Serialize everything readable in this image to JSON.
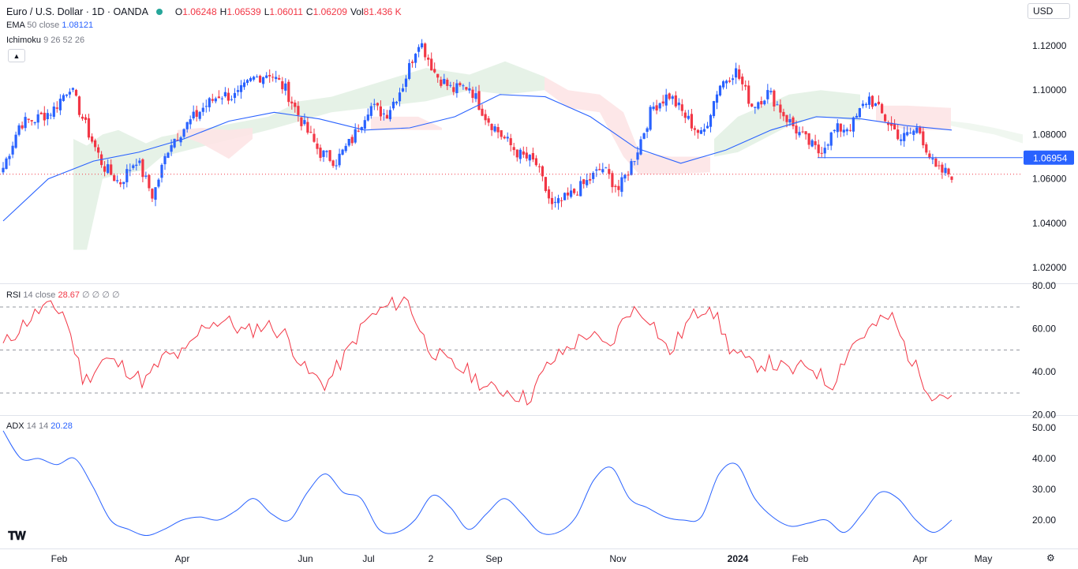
{
  "header": {
    "symbol": "Euro / U.S. Dollar · 1D · OANDA",
    "open_label": "O",
    "open": "1.06248",
    "high_label": "H",
    "high": "1.06539",
    "low_label": "L",
    "low": "1.06011",
    "close_label": "C",
    "close": "1.06209",
    "vol_label": "Vol",
    "vol": "81.436 K"
  },
  "currency": "USD",
  "indicators": {
    "ema": {
      "name": "EMA",
      "params": "50 close",
      "value": "1.08121"
    },
    "ichimoku": {
      "name": "Ichimoku",
      "params": "9 26 52 26"
    },
    "rsi": {
      "name": "RSI",
      "params": "14 close",
      "value": "28.67",
      "extra": "∅ ∅ ∅ ∅"
    },
    "adx": {
      "name": "ADX",
      "params": "14 14",
      "value": "20.28"
    }
  },
  "colors": {
    "up": "#2962ff",
    "down": "#f23645",
    "ema": "#2962ff",
    "rsi": "#f23645",
    "adx": "#2962ff",
    "cloud_up": "#e3f1e4",
    "cloud_down": "#fde4e6"
  },
  "chart_data": [
    {
      "type": "candlestick",
      "title": "Euro / U.S. Dollar · 1D · OANDA",
      "ylim": [
        1.01,
        1.129
      ],
      "y_ticks": [
        "1.12000",
        "1.10000",
        "1.08000",
        "1.06000",
        "1.04000",
        "1.02000"
      ],
      "x_ticks": [
        "Feb",
        "Apr",
        "Jun",
        "Jul",
        "2",
        "Sep",
        "Nov",
        "2024",
        "Feb",
        "Apr",
        "May"
      ],
      "current_price": "1.06209",
      "level_line": {
        "label": "1.06954",
        "value": 1.06954
      },
      "close_path": [
        [
          "Jan 2023",
          1.065
        ],
        [
          "Jan 2023",
          1.085
        ],
        [
          "Jan 2023",
          1.087
        ],
        [
          "Jan 2023",
          1.091
        ],
        [
          "Feb",
          1.102
        ],
        [
          "Feb",
          1.083
        ],
        [
          "Feb",
          1.066
        ],
        [
          "Feb",
          1.058
        ],
        [
          "Mar",
          1.069
        ],
        [
          "Mar",
          1.052
        ],
        [
          "Mar",
          1.076
        ],
        [
          "Mar",
          1.084
        ],
        [
          "Apr",
          1.092
        ],
        [
          "Apr",
          1.098
        ],
        [
          "Apr",
          1.097
        ],
        [
          "Apr",
          1.105
        ],
        [
          "May",
          1.108
        ],
        [
          "May",
          1.1
        ],
        [
          "May",
          1.085
        ],
        [
          "May",
          1.072
        ],
        [
          "Jun",
          1.068
        ],
        [
          "Jun",
          1.078
        ],
        [
          "Jun",
          1.093
        ],
        [
          "Jun",
          1.089
        ],
        [
          "Jul",
          1.102
        ],
        [
          "Jul",
          1.123
        ],
        [
          "Jul",
          1.107
        ],
        [
          "Jul",
          1.1
        ],
        [
          "Aug",
          1.102
        ],
        [
          "Aug",
          1.088
        ],
        [
          "Aug",
          1.079
        ],
        [
          "Aug",
          1.071
        ],
        [
          "Sep",
          1.067
        ],
        [
          "Sep",
          1.047
        ],
        [
          "Sep",
          1.052
        ],
        [
          "Oct",
          1.058
        ],
        [
          "Oct",
          1.065
        ],
        [
          "Oct",
          1.055
        ],
        [
          "Nov",
          1.071
        ],
        [
          "Nov",
          1.092
        ],
        [
          "Nov",
          1.098
        ],
        [
          "Dec",
          1.088
        ],
        [
          "Dec",
          1.079
        ],
        [
          "Dec",
          1.102
        ],
        [
          "Dec",
          1.109
        ],
        [
          "Jan 2024",
          1.093
        ],
        [
          "Jan 2024",
          1.099
        ],
        [
          "Jan 2024",
          1.088
        ],
        [
          "Feb",
          1.079
        ],
        [
          "Feb",
          1.072
        ],
        [
          "Feb",
          1.082
        ],
        [
          "Mar",
          1.084
        ],
        [
          "Mar",
          1.097
        ],
        [
          "Mar",
          1.087
        ],
        [
          "Apr",
          1.078
        ],
        [
          "Apr",
          1.083
        ],
        [
          "Apr",
          1.064
        ],
        [
          "Apr",
          1.062
        ]
      ],
      "series": [
        {
          "name": "EMA 50 close",
          "path": [
            1.041,
            1.06,
            1.068,
            1.072,
            1.078,
            1.086,
            1.09,
            1.087,
            1.082,
            1.083,
            1.088,
            1.098,
            1.097,
            1.088,
            1.074,
            1.067,
            1.073,
            1.082,
            1.088,
            1.087,
            1.084,
            1.082
          ]
        },
        {
          "name": "Ichimoku"
        }
      ]
    },
    {
      "type": "line",
      "name": "RSI 14 close",
      "ylim": [
        20,
        80
      ],
      "y_ticks": [
        "80.00",
        "60.00",
        "40.00",
        "20.00"
      ],
      "bands": [
        70,
        50,
        30
      ],
      "values": [
        52,
        62,
        70,
        68,
        35,
        46,
        42,
        35,
        47,
        48,
        62,
        64,
        58,
        62,
        57,
        40,
        34,
        48,
        64,
        70,
        74,
        52,
        44,
        40,
        32,
        31,
        27,
        43,
        51,
        58,
        50,
        69,
        66,
        48,
        64,
        72,
        51,
        43,
        44,
        40,
        43,
        33,
        52,
        60,
        66,
        45,
        30,
        29
      ]
    },
    {
      "type": "line",
      "name": "ADX 14 14",
      "ylim": [
        12,
        51
      ],
      "y_ticks": [
        "50.00",
        "40.00",
        "30.00",
        "20.00"
      ],
      "values": [
        49,
        40,
        40,
        38,
        40,
        31,
        20,
        17,
        15,
        17,
        20,
        21,
        20,
        23,
        27,
        22,
        20,
        29,
        35,
        29,
        27,
        17,
        16,
        20,
        28,
        24,
        17,
        22,
        27,
        22,
        16,
        16,
        21,
        33,
        37,
        27,
        24,
        21,
        20,
        21,
        35,
        38,
        27,
        21,
        18,
        19,
        20,
        16,
        22,
        29,
        27,
        20,
        16,
        20
      ]
    }
  ]
}
